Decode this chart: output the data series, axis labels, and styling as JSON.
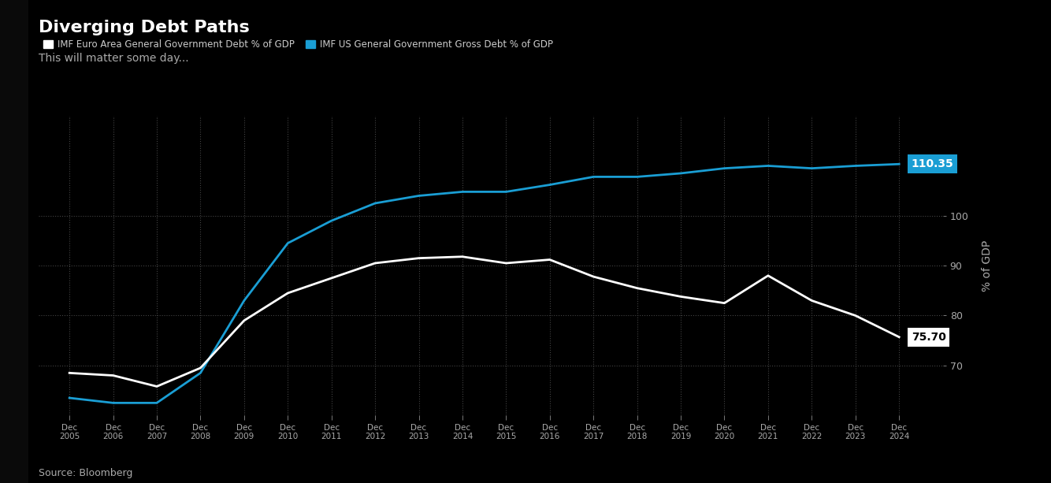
{
  "title": "Diverging Debt Paths",
  "subtitle": "This will matter some day...",
  "source": "Source: Bloomberg",
  "ylabel": "% of GDP",
  "legend_euro": "IMF Euro Area General Government Debt % of GDP",
  "legend_us": "IMF US General Government Gross Debt % of GDP",
  "bg_color": "#000000",
  "euro_color": "#ffffff",
  "us_color": "#1a9ed4",
  "years": [
    2005,
    2006,
    2007,
    2008,
    2009,
    2010,
    2011,
    2012,
    2013,
    2014,
    2015,
    2016,
    2017,
    2018,
    2019,
    2020,
    2021,
    2022,
    2023,
    2024
  ],
  "euro_debt": [
    68.5,
    68.0,
    65.8,
    69.5,
    79.0,
    84.5,
    87.5,
    90.5,
    91.5,
    91.8,
    90.5,
    91.2,
    87.8,
    85.5,
    83.8,
    82.5,
    88.0,
    83.0,
    80.0,
    75.7
  ],
  "us_debt": [
    63.5,
    62.5,
    62.5,
    68.5,
    83.0,
    94.5,
    99.0,
    102.5,
    104.0,
    104.8,
    104.8,
    106.2,
    107.8,
    107.8,
    108.5,
    109.5,
    110.0,
    109.5,
    110.0,
    110.35
  ],
  "ylim": [
    60,
    120
  ],
  "yticks": [
    70,
    80,
    90,
    100
  ],
  "end_label_us": "110.35",
  "end_label_euro": "75.70"
}
